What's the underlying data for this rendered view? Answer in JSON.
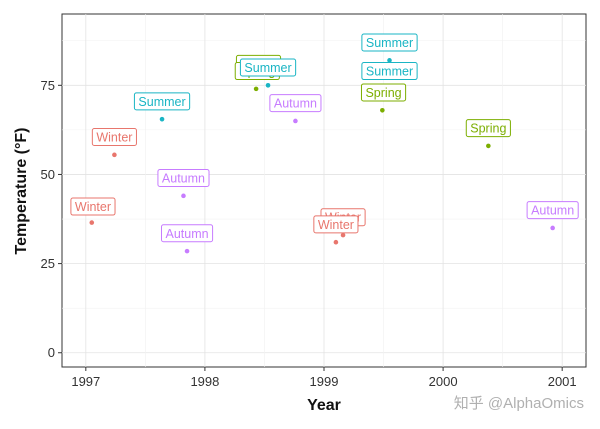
{
  "chart_data": {
    "type": "scatter",
    "xlabel": "Year",
    "ylabel": "Temperature (°F)",
    "xlim": [
      1996.8,
      2001.2
    ],
    "ylim": [
      -4,
      95
    ],
    "x_ticks": [
      1997,
      1998,
      1999,
      2000,
      2001
    ],
    "x_tick_labels": [
      "1997",
      "1998",
      "1999",
      "2000",
      "2001"
    ],
    "y_ticks": [
      0,
      25,
      50,
      75
    ],
    "y_tick_labels": [
      "0",
      "25",
      "50",
      "75"
    ],
    "grid": true,
    "legend": "none",
    "season_colors": {
      "Winter": "#e8766d",
      "Spring": "#7cae00",
      "Summer": "#1ab5c4",
      "Autumn": "#c77cff"
    },
    "points": [
      {
        "x": 1997.05,
        "y": 36.5,
        "season": "Winter"
      },
      {
        "x": 1997.24,
        "y": 55.5,
        "season": "Winter"
      },
      {
        "x": 1997.64,
        "y": 65.5,
        "season": "Summer"
      },
      {
        "x": 1997.82,
        "y": 44.0,
        "season": "Autumn"
      },
      {
        "x": 1997.85,
        "y": 28.5,
        "season": "Autumn"
      },
      {
        "x": 1998.43,
        "y": 74.0,
        "season": "Spring"
      },
      {
        "x": 1998.53,
        "y": 75.0,
        "season": "Summer"
      },
      {
        "x": 1998.76,
        "y": 65.0,
        "season": "Autumn"
      },
      {
        "x": 1999.1,
        "y": 31.0,
        "season": "Winter"
      },
      {
        "x": 1999.16,
        "y": 33.0,
        "season": "Winter"
      },
      {
        "x": 1999.49,
        "y": 68.0,
        "season": "Spring"
      },
      {
        "x": 1999.55,
        "y": 82.0,
        "season": "Summer"
      },
      {
        "x": 2000.38,
        "y": 58.0,
        "season": "Spring"
      },
      {
        "x": 2000.92,
        "y": 35.0,
        "season": "Autumn"
      }
    ],
    "labels": [
      {
        "text": "Winter",
        "season": "Winter",
        "x": 1997.06,
        "y": 41.0
      },
      {
        "text": "Winter",
        "season": "Winter",
        "x": 1997.24,
        "y": 60.5
      },
      {
        "text": "Summer",
        "season": "Summer",
        "x": 1997.64,
        "y": 70.5
      },
      {
        "text": "Autumn",
        "season": "Autumn",
        "x": 1997.82,
        "y": 49.0
      },
      {
        "text": "Autumn",
        "season": "Autumn",
        "x": 1997.85,
        "y": 33.5
      },
      {
        "text": "Spring",
        "season": "Spring",
        "x": 1998.45,
        "y": 81.0
      },
      {
        "text": "Spring",
        "season": "Spring",
        "x": 1998.44,
        "y": 79.0
      },
      {
        "text": "Summer",
        "season": "Summer",
        "x": 1998.53,
        "y": 80.0
      },
      {
        "text": "Autumn",
        "season": "Autumn",
        "x": 1998.76,
        "y": 70.0
      },
      {
        "text": "Winter",
        "season": "Winter",
        "x": 1999.16,
        "y": 38.0
      },
      {
        "text": "Winter",
        "season": "Winter",
        "x": 1999.1,
        "y": 36.0
      },
      {
        "text": "Summer",
        "season": "Summer",
        "x": 1999.55,
        "y": 87.0
      },
      {
        "text": "Summer",
        "season": "Summer",
        "x": 1999.55,
        "y": 79.0
      },
      {
        "text": "Spring",
        "season": "Spring",
        "x": 1999.5,
        "y": 73.0
      },
      {
        "text": "Spring",
        "season": "Spring",
        "x": 2000.38,
        "y": 63.0
      },
      {
        "text": "Autumn",
        "season": "Autumn",
        "x": 2000.92,
        "y": 40.0
      }
    ]
  },
  "watermark": "知乎 @AlphaOmics"
}
